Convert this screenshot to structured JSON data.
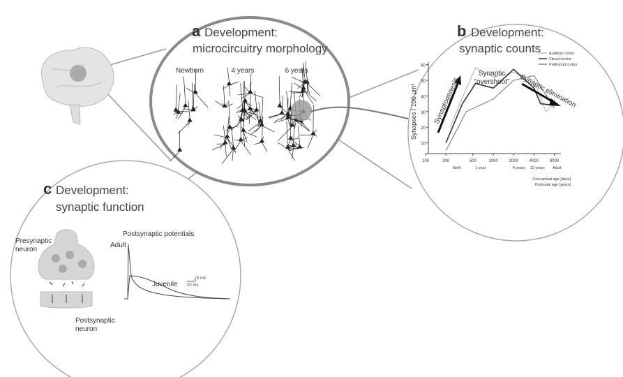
{
  "panel_a": {
    "letter": "a",
    "title_line1": "Development:",
    "title_line2": "microcircuitry morphology",
    "ages": [
      "Newborn",
      "4 years",
      "6 years"
    ]
  },
  "panel_b": {
    "letter": "b",
    "title_line1": "Development:",
    "title_line2": "synaptic counts",
    "chart": {
      "type": "line",
      "y_label": "Synapses / 100 µm³",
      "x_label_1": "Conceptual age [days]",
      "x_label_2": "Postnatal age [years]",
      "log_x": true,
      "xlim": [
        100,
        10000
      ],
      "xticks": [
        100,
        200,
        500,
        1000,
        2000,
        4000,
        8000
      ],
      "ylim": [
        0,
        65
      ],
      "yticks": [
        10,
        20,
        30,
        40,
        50,
        60
      ],
      "age_ticks": [
        {
          "value": 290,
          "label": "Birth"
        },
        {
          "value": 650,
          "label": "1 year"
        },
        {
          "value": 2400,
          "label": "4 years"
        },
        {
          "value": 4500,
          "label": "12 years"
        },
        {
          "value": 8700,
          "label": "Adult"
        }
      ],
      "series": [
        {
          "name": "Auditory cortex",
          "color": "#bbbbbb",
          "x": [
            230,
            400,
            550,
            1000,
            2000,
            4000,
            6000,
            8000
          ],
          "values": [
            20,
            45,
            58,
            52,
            55,
            50,
            30,
            35
          ]
        },
        {
          "name": "Visual cortex",
          "color": "#333333",
          "x": [
            200,
            350,
            550,
            1000,
            2000,
            4000,
            5000,
            8000
          ],
          "values": [
            10,
            35,
            48,
            45,
            57,
            45,
            35,
            34
          ]
        },
        {
          "name": "Prefrontal cortex",
          "color": "#888888",
          "x": [
            200,
            400,
            1000,
            2000,
            4000,
            8000
          ],
          "values": [
            5,
            30,
            38,
            50,
            53,
            32
          ]
        }
      ],
      "annotations": [
        "Synaptic",
        "\"overshoot\"",
        "Synaptogenesis",
        "Synaptic elimination"
      ]
    }
  },
  "panel_c": {
    "letter": "c",
    "title_line1": "Development:",
    "title_line2": "synaptic function",
    "presynaptic": [
      "Presynaptic",
      "neuron"
    ],
    "postsynaptic": [
      "Postsynaptic",
      "neuron"
    ],
    "trace_title": "Postsynaptic potentials",
    "adult": "Adult",
    "juvenile": "Juvenile",
    "scale_v": "5 mV",
    "scale_t": "20 ms"
  }
}
